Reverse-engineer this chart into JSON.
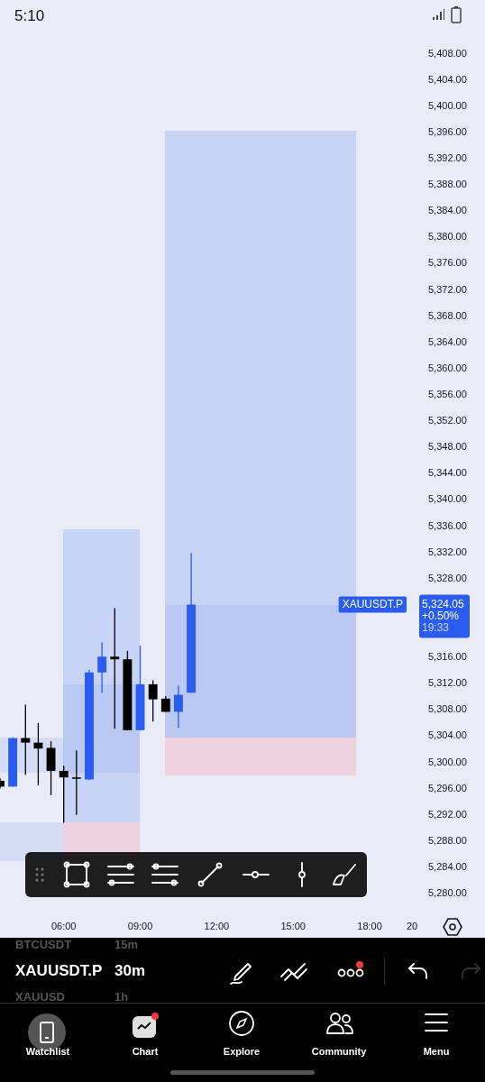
{
  "chart_data": {
    "type": "candlestick",
    "x": [
      3.5,
      4,
      4.5,
      5,
      5.5,
      6,
      6.5,
      7,
      7.5,
      8,
      8.5,
      9,
      9.5,
      10,
      10.5,
      11
    ],
    "ohlc": [
      [
        5297.2,
        5297.6,
        5296.0,
        5296.3
      ],
      [
        5296.3,
        5303.8,
        5296.3,
        5303.7
      ],
      [
        5303.7,
        5308.8,
        5298.1,
        5303.0
      ],
      [
        5303.0,
        5306.0,
        5296.5,
        5302.1
      ],
      [
        5302.2,
        5303.2,
        5295.0,
        5298.7
      ],
      [
        5298.7,
        5299.5,
        5290.8,
        5297.7
      ],
      [
        5297.7,
        5301.8,
        5292.0,
        5297.6
      ],
      [
        5297.4,
        5314.1,
        5297.4,
        5313.7
      ],
      [
        5313.7,
        5318.3,
        5310.6,
        5316.1
      ],
      [
        5316.1,
        5323.5,
        5305.1,
        5315.7
      ],
      [
        5315.7,
        5317.0,
        5304.9,
        5304.9
      ],
      [
        5304.9,
        5317.8,
        5304.9,
        5311.9
      ],
      [
        5311.9,
        5312.5,
        5306.2,
        5309.6
      ],
      [
        5309.7,
        5310.1,
        5307.7,
        5307.7
      ],
      [
        5307.7,
        5311.7,
        5305.3,
        5310.3
      ],
      [
        5310.6,
        5331.9,
        5310.6,
        5324.05
      ]
    ],
    "colors": [
      "#000000",
      "#2b5cf0",
      "#000000",
      "#000000",
      "#000000",
      "#000000",
      "#000000",
      "#2b5cf0",
      "#2b5cf0",
      "#000000",
      "#000000",
      "#2b5cf0",
      "#000000",
      "#000000",
      "#2b5cf0",
      "#2b5cf0"
    ],
    "xlim": [
      3.5,
      19.66
    ],
    "xticks": [
      {
        "value": 6,
        "label": "06:00"
      },
      {
        "value": 9,
        "label": "09:00"
      },
      {
        "value": 12,
        "label": "12:00"
      },
      {
        "value": 15,
        "label": "15:00"
      },
      {
        "value": 18,
        "label": "18:00"
      },
      {
        "value": 19.66,
        "label": "20"
      }
    ],
    "ylim": [
      5280,
      5408
    ],
    "yticks": [
      {
        "value": 5280,
        "label": "5,280.00"
      },
      {
        "value": 5284,
        "label": "5,284.00"
      },
      {
        "value": 5288,
        "label": "5,288.00"
      },
      {
        "value": 5292,
        "label": "5,292.00"
      },
      {
        "value": 5296,
        "label": "5,296.00"
      },
      {
        "value": 5300,
        "label": "5,300.00"
      },
      {
        "value": 5304,
        "label": "5,304.00"
      },
      {
        "value": 5308,
        "label": "5,308.00"
      },
      {
        "value": 5312,
        "label": "5,312.00"
      },
      {
        "value": 5316,
        "label": "5,316.00"
      },
      {
        "value": 5328,
        "label": "5,328.00"
      },
      {
        "value": 5332,
        "label": "5,332.00"
      },
      {
        "value": 5336,
        "label": "5,336.00"
      },
      {
        "value": 5340,
        "label": "5,340.00"
      },
      {
        "value": 5344,
        "label": "5,344.00"
      },
      {
        "value": 5348,
        "label": "5,348.00"
      },
      {
        "value": 5352,
        "label": "5,352.00"
      },
      {
        "value": 5356,
        "label": "5,356.00"
      },
      {
        "value": 5360,
        "label": "5,360.00"
      },
      {
        "value": 5364,
        "label": "5,364.00"
      },
      {
        "value": 5368,
        "label": "5,368.00"
      },
      {
        "value": 5372,
        "label": "5,372.00"
      },
      {
        "value": 5376,
        "label": "5,376.00"
      },
      {
        "value": 5380,
        "label": "5,380.00"
      },
      {
        "value": 5384,
        "label": "5,384.00"
      },
      {
        "value": 5388,
        "label": "5,388.00"
      },
      {
        "value": 5392,
        "label": "5,392.00"
      },
      {
        "value": 5396,
        "label": "5,396.00"
      },
      {
        "value": 5400,
        "label": "5,400.00"
      },
      {
        "value": 5404,
        "label": "5,404.00"
      },
      {
        "value": 5408,
        "label": "5,408.00"
      }
    ],
    "annotations": [
      "XAUUSDT.P",
      "5,324.05",
      "+0.50%",
      "19:33",
      "5:10",
      "BTCUSDT",
      "15m",
      "XAUUSDT.P",
      "30m",
      "XAUUSD",
      "1h",
      "Watchlist",
      "Chart",
      "Explore",
      "Community",
      "Menu"
    ]
  }
}
